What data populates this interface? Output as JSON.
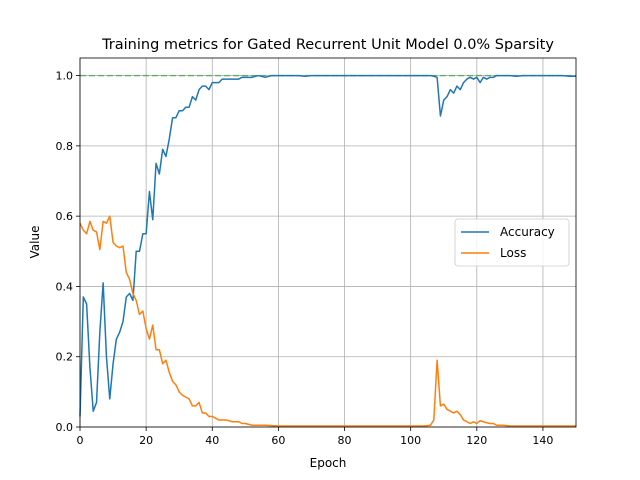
{
  "chart_data": {
    "type": "line",
    "title": "Training metrics for Gated Recurrent Unit Model 0.0% Sparsity",
    "xlabel": "Epoch",
    "ylabel": "Value",
    "xlim": [
      0,
      150
    ],
    "ylim": [
      0,
      1.05
    ],
    "xticks": [
      0,
      20,
      40,
      60,
      80,
      100,
      120,
      140
    ],
    "yticks": [
      0.0,
      0.2,
      0.4,
      0.6,
      0.8,
      1.0
    ],
    "xtick_labels": [
      "0",
      "20",
      "40",
      "60",
      "80",
      "100",
      "120",
      "140"
    ],
    "ytick_labels": [
      "0.0",
      "0.2",
      "0.4",
      "0.6",
      "0.8",
      "1.0"
    ],
    "grid": true,
    "legend_position": "center-right",
    "reference_line": {
      "y": 1.0,
      "color": "#2ca02c",
      "style": "dashed"
    },
    "series": [
      {
        "name": "Accuracy",
        "color": "#1f77b4",
        "x": [
          0,
          1,
          2,
          3,
          4,
          5,
          6,
          7,
          8,
          9,
          10,
          11,
          12,
          13,
          14,
          15,
          16,
          17,
          18,
          19,
          20,
          21,
          22,
          23,
          24,
          25,
          26,
          27,
          28,
          29,
          30,
          31,
          32,
          33,
          34,
          35,
          36,
          37,
          38,
          39,
          40,
          41,
          42,
          43,
          44,
          45,
          46,
          47,
          48,
          49,
          50,
          52,
          54,
          56,
          58,
          60,
          62,
          64,
          66,
          68,
          70,
          72,
          74,
          76,
          78,
          80,
          82,
          84,
          86,
          88,
          90,
          92,
          94,
          96,
          98,
          100,
          102,
          104,
          106,
          107,
          108,
          109,
          110,
          111,
          112,
          113,
          114,
          115,
          116,
          117,
          118,
          119,
          120,
          121,
          122,
          123,
          124,
          125,
          126,
          128,
          130,
          132,
          134,
          136,
          138,
          140,
          142,
          144,
          146,
          148,
          150
        ],
        "values": [
          0.03,
          0.37,
          0.35,
          0.17,
          0.045,
          0.07,
          0.27,
          0.41,
          0.2,
          0.08,
          0.18,
          0.25,
          0.27,
          0.3,
          0.37,
          0.38,
          0.36,
          0.5,
          0.5,
          0.55,
          0.55,
          0.67,
          0.59,
          0.75,
          0.72,
          0.79,
          0.77,
          0.82,
          0.88,
          0.88,
          0.9,
          0.9,
          0.91,
          0.91,
          0.94,
          0.93,
          0.96,
          0.97,
          0.97,
          0.96,
          0.98,
          0.98,
          0.98,
          0.99,
          0.99,
          0.99,
          0.99,
          0.99,
          0.99,
          0.995,
          0.995,
          0.995,
          1.0,
          0.995,
          1.0,
          1.0,
          1.0,
          1.0,
          1.0,
          0.998,
          1.0,
          1.0,
          1.0,
          1.0,
          1.0,
          1.0,
          1.0,
          1.0,
          1.0,
          1.0,
          1.0,
          1.0,
          1.0,
          1.0,
          1.0,
          1.0,
          1.0,
          1.0,
          1.0,
          0.998,
          0.995,
          0.885,
          0.93,
          0.94,
          0.96,
          0.95,
          0.97,
          0.96,
          0.98,
          0.99,
          0.995,
          0.99,
          0.995,
          0.98,
          0.995,
          0.99,
          0.995,
          0.995,
          1.0,
          1.0,
          1.0,
          0.998,
          1.0,
          1.0,
          1.0,
          1.0,
          1.0,
          1.0,
          1.0,
          0.998,
          0.998
        ]
      },
      {
        "name": "Loss",
        "color": "#ff7f0e",
        "x": [
          0,
          1,
          2,
          3,
          4,
          5,
          6,
          7,
          8,
          9,
          10,
          11,
          12,
          13,
          14,
          15,
          16,
          17,
          18,
          19,
          20,
          21,
          22,
          23,
          24,
          25,
          26,
          27,
          28,
          29,
          30,
          31,
          32,
          33,
          34,
          35,
          36,
          37,
          38,
          39,
          40,
          41,
          42,
          43,
          44,
          45,
          46,
          47,
          48,
          49,
          50,
          52,
          54,
          56,
          58,
          60,
          62,
          64,
          66,
          68,
          70,
          72,
          74,
          76,
          78,
          80,
          82,
          84,
          86,
          88,
          90,
          92,
          94,
          96,
          98,
          100,
          102,
          104,
          106,
          107,
          108,
          109,
          110,
          111,
          112,
          113,
          114,
          115,
          116,
          117,
          118,
          119,
          120,
          121,
          122,
          123,
          124,
          125,
          126,
          128,
          130,
          132,
          134,
          136,
          138,
          140,
          142,
          144,
          146,
          148,
          150
        ],
        "values": [
          0.58,
          0.56,
          0.55,
          0.585,
          0.56,
          0.555,
          0.505,
          0.585,
          0.58,
          0.6,
          0.525,
          0.515,
          0.51,
          0.515,
          0.44,
          0.42,
          0.38,
          0.36,
          0.32,
          0.33,
          0.28,
          0.25,
          0.29,
          0.22,
          0.22,
          0.18,
          0.19,
          0.155,
          0.13,
          0.12,
          0.1,
          0.09,
          0.085,
          0.08,
          0.06,
          0.06,
          0.07,
          0.04,
          0.04,
          0.03,
          0.03,
          0.025,
          0.02,
          0.02,
          0.02,
          0.018,
          0.015,
          0.015,
          0.015,
          0.01,
          0.01,
          0.005,
          0.005,
          0.005,
          0.004,
          0.003,
          0.003,
          0.003,
          0.003,
          0.003,
          0.003,
          0.003,
          0.003,
          0.003,
          0.003,
          0.003,
          0.003,
          0.003,
          0.003,
          0.003,
          0.003,
          0.003,
          0.003,
          0.003,
          0.003,
          0.003,
          0.003,
          0.003,
          0.005,
          0.02,
          0.19,
          0.06,
          0.065,
          0.05,
          0.045,
          0.04,
          0.045,
          0.035,
          0.02,
          0.015,
          0.01,
          0.015,
          0.01,
          0.018,
          0.015,
          0.012,
          0.01,
          0.01,
          0.005,
          0.005,
          0.003,
          0.003,
          0.003,
          0.003,
          0.003,
          0.003,
          0.003,
          0.003,
          0.003,
          0.003,
          0.003
        ]
      }
    ]
  }
}
